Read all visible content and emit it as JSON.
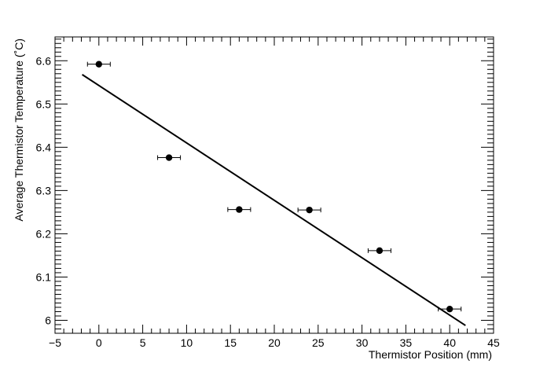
{
  "chart_data": {
    "type": "scatter",
    "xlabel": "Thermistor Position (mm)",
    "ylabel": "Average Thermistor Temperature (˚C)",
    "xlim": [
      -5,
      45
    ],
    "ylim": [
      5.97,
      6.655
    ],
    "x_ticks": [
      -5,
      0,
      5,
      10,
      15,
      20,
      25,
      30,
      35,
      40,
      45
    ],
    "y_ticks": [
      6.0,
      6.1,
      6.2,
      6.3,
      6.4,
      6.5,
      6.6
    ],
    "x_tick_labels": [
      "−5",
      "0",
      "5",
      "10",
      "15",
      "20",
      "25",
      "30",
      "35",
      "40",
      "45"
    ],
    "y_tick_labels": [
      "6",
      "6.1",
      "6.2",
      "6.3",
      "6.4",
      "6.5",
      "6.6"
    ],
    "grid": false,
    "series": [
      {
        "points": [
          {
            "x": 0,
            "y": 6.592,
            "xerr": 1.3
          },
          {
            "x": 8,
            "y": 6.376,
            "xerr": 1.3
          },
          {
            "x": 16,
            "y": 6.256,
            "xerr": 1.3
          },
          {
            "x": 24,
            "y": 6.255,
            "xerr": 1.3
          },
          {
            "x": 32,
            "y": 6.161,
            "xerr": 1.3
          },
          {
            "x": 40,
            "y": 6.026,
            "xerr": 1.3
          }
        ]
      }
    ],
    "fit_line": {
      "x": [
        -1.9,
        41.8
      ],
      "y": [
        6.568,
        5.988
      ]
    }
  }
}
